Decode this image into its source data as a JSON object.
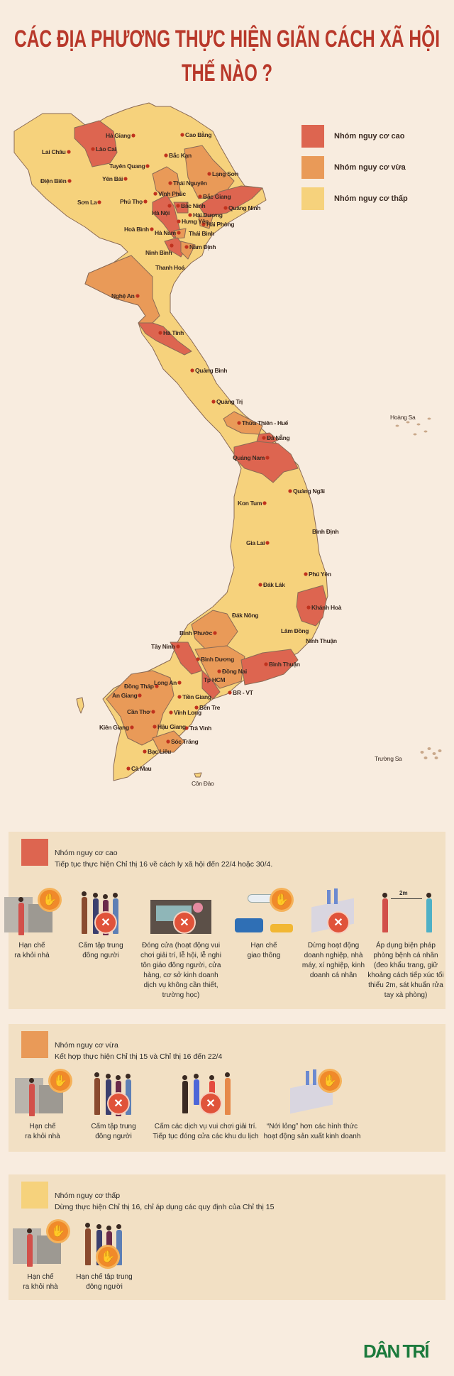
{
  "title": {
    "line1": "CÁC ĐỊA PHƯƠNG THỰC HIỆN GIÃN CÁCH XÃ HỘI",
    "line2": "THẾ NÀO ?"
  },
  "colors": {
    "high": "#dd6550",
    "medium": "#e99a58",
    "low": "#f6d27c",
    "title": "#b8382a",
    "panel": "#f2e0c4",
    "brand": "#1b7a3c",
    "dot": "#c0321e"
  },
  "legend": [
    {
      "level": "high",
      "label": "Nhóm nguy cơ cao"
    },
    {
      "level": "medium",
      "label": "Nhóm nguy cơ vừa"
    },
    {
      "level": "low",
      "label": "Nhóm nguy cơ thấp"
    }
  ],
  "map": {
    "provinces": [
      {
        "name": "Hà Giang",
        "risk": "low"
      },
      {
        "name": "Cao Bằng",
        "risk": "low"
      },
      {
        "name": "Lào Cai",
        "risk": "high"
      },
      {
        "name": "Lai Châu",
        "risk": "low"
      },
      {
        "name": "Bắc Kạn",
        "risk": "low"
      },
      {
        "name": "Tuyên Quang",
        "risk": "low"
      },
      {
        "name": "Lạng Sơn",
        "risk": "medium"
      },
      {
        "name": "Thái Nguyên",
        "risk": "medium"
      },
      {
        "name": "Điện Biên",
        "risk": "low"
      },
      {
        "name": "Yên Bái",
        "risk": "low"
      },
      {
        "name": "Vĩnh Phúc",
        "risk": "low"
      },
      {
        "name": "Bắc Giang",
        "risk": "low"
      },
      {
        "name": "Sơn La",
        "risk": "low"
      },
      {
        "name": "Phú Thọ",
        "risk": "low"
      },
      {
        "name": "Hà Nội",
        "risk": "high"
      },
      {
        "name": "Bắc Ninh",
        "risk": "high"
      },
      {
        "name": "Quảng Ninh",
        "risk": "high"
      },
      {
        "name": "Hải Dương",
        "risk": "low"
      },
      {
        "name": "Hưng Yên",
        "risk": "low"
      },
      {
        "name": "Hải Phòng",
        "risk": "medium"
      },
      {
        "name": "Hoà Bình",
        "risk": "low"
      },
      {
        "name": "Hà Nam",
        "risk": "medium"
      },
      {
        "name": "Thái Bình",
        "risk": "low"
      },
      {
        "name": "Ninh Bình",
        "risk": "high"
      },
      {
        "name": "Nam Định",
        "risk": "medium"
      },
      {
        "name": "Thanh Hoá",
        "risk": "low"
      },
      {
        "name": "Nghệ An",
        "risk": "medium"
      },
      {
        "name": "Hà Tĩnh",
        "risk": "high"
      },
      {
        "name": "Quảng Bình",
        "risk": "low"
      },
      {
        "name": "Quảng Trị",
        "risk": "low"
      },
      {
        "name": "Thừa Thiên - Huế",
        "risk": "medium"
      },
      {
        "name": "Đà Nẵng",
        "risk": "high"
      },
      {
        "name": "Quảng Nam",
        "risk": "high"
      },
      {
        "name": "Quảng Ngãi",
        "risk": "low"
      },
      {
        "name": "Kon Tum",
        "risk": "low"
      },
      {
        "name": "Bình Định",
        "risk": "low"
      },
      {
        "name": "Gia Lai",
        "risk": "low"
      },
      {
        "name": "Phú Yên",
        "risk": "low"
      },
      {
        "name": "Đák Lák",
        "risk": "low"
      },
      {
        "name": "Khánh Hoà",
        "risk": "high"
      },
      {
        "name": "Đák Nông",
        "risk": "low"
      },
      {
        "name": "Lâm Đồng",
        "risk": "low"
      },
      {
        "name": "Ninh Thuận",
        "risk": "low"
      },
      {
        "name": "Bình Phước",
        "risk": "medium"
      },
      {
        "name": "Tây Ninh",
        "risk": "high"
      },
      {
        "name": "Bình Dương",
        "risk": "medium"
      },
      {
        "name": "Bình Thuận",
        "risk": "high"
      },
      {
        "name": "Đồng Nai",
        "risk": "medium"
      },
      {
        "name": "Tp HCM",
        "risk": "high"
      },
      {
        "name": "Long An",
        "risk": "low"
      },
      {
        "name": "Đồng Tháp",
        "risk": "medium"
      },
      {
        "name": "An Giang",
        "risk": "medium"
      },
      {
        "name": "BR - VT",
        "risk": "low"
      },
      {
        "name": "Tiền Giang",
        "risk": "low"
      },
      {
        "name": "Bến Tre",
        "risk": "low"
      },
      {
        "name": "Cần Thơ",
        "risk": "medium"
      },
      {
        "name": "Vĩnh Long",
        "risk": "low"
      },
      {
        "name": "Kiên Giang",
        "risk": "medium"
      },
      {
        "name": "Hậu Giang",
        "risk": "low"
      },
      {
        "name": "Trà Vinh",
        "risk": "low"
      },
      {
        "name": "Sóc Trăng",
        "risk": "medium"
      },
      {
        "name": "Bạc Liêu",
        "risk": "low"
      },
      {
        "name": "Cà Mau",
        "risk": "low"
      }
    ],
    "islands": [
      "Côn Đảo",
      "Hoàng Sa",
      "Trường Sa"
    ]
  },
  "sections": [
    {
      "level": "high",
      "heading": "Nhóm nguy cơ cao",
      "desc": "Tiếp tục thực hiện Chỉ thị 16 về cách ly xã hội đến 22/4 hoặc 30/4.",
      "items": [
        {
          "icon": "stay-home",
          "badge": "stop",
          "caption": "Hạn chế\nra khỏi nhà"
        },
        {
          "icon": "crowd",
          "badge": "x",
          "caption": "Cấm tập trung\nđông người"
        },
        {
          "icon": "shop",
          "badge": "x",
          "caption": "Đóng cửa (hoạt động vui\nchơi giải trí, lễ hội, lễ nghi\ntôn giáo đông người, cửa\nhàng, cơ sở kinh doanh\ndịch vụ không cần thiết,\ntrường học)"
        },
        {
          "icon": "traffic",
          "badge": "stop",
          "caption": "Hạn chế\ngiao thông"
        },
        {
          "icon": "factory",
          "badge": "x",
          "caption": "Dừng hoạt động\ndoanh nghiệp, nhà\nmáy, xí nghiệp, kinh\ndoanh cá nhân"
        },
        {
          "icon": "distance",
          "badge": "",
          "label": "2m",
          "caption": "Áp dụng biện pháp\nphòng bệnh cá nhân\n(đeo khẩu trang, giữ\nkhoảng cách tiếp xúc tối\nthiểu 2m, sát khuẩn rửa\ntay xà phòng)"
        }
      ]
    },
    {
      "level": "medium",
      "heading": "Nhóm nguy cơ vừa",
      "desc": "Kết hợp thực hiện Chỉ thị 15 và Chỉ thị 16 đến 22/4",
      "items": [
        {
          "icon": "stay-home",
          "badge": "stop",
          "caption": "Hạn chế\nra khỏi nhà"
        },
        {
          "icon": "crowd",
          "badge": "x",
          "caption": "Cấm tập trung\nđông người"
        },
        {
          "icon": "dance",
          "badge": "x",
          "caption": "Cấm các dịch vụ vui chơi giải trí.\nTiếp tục đóng cửa các khu du lịch"
        },
        {
          "icon": "factory",
          "badge": "stop",
          "caption": "“Nới lỏng” hơn các hình thức\nhoạt động sản xuất kinh doanh"
        }
      ]
    },
    {
      "level": "low",
      "heading": "Nhóm nguy cơ thấp",
      "desc": "Dừng thực hiện Chỉ thị 16, chỉ áp dụng các quy định của Chỉ thị 15",
      "items": [
        {
          "icon": "stay-home",
          "badge": "stop",
          "caption": "Hạn chế\nra khỏi nhà"
        },
        {
          "icon": "crowd",
          "badge": "stop",
          "caption": "Hạn chế tập trung\nđông người"
        }
      ]
    }
  ],
  "logo": "DÂN TRÍ"
}
